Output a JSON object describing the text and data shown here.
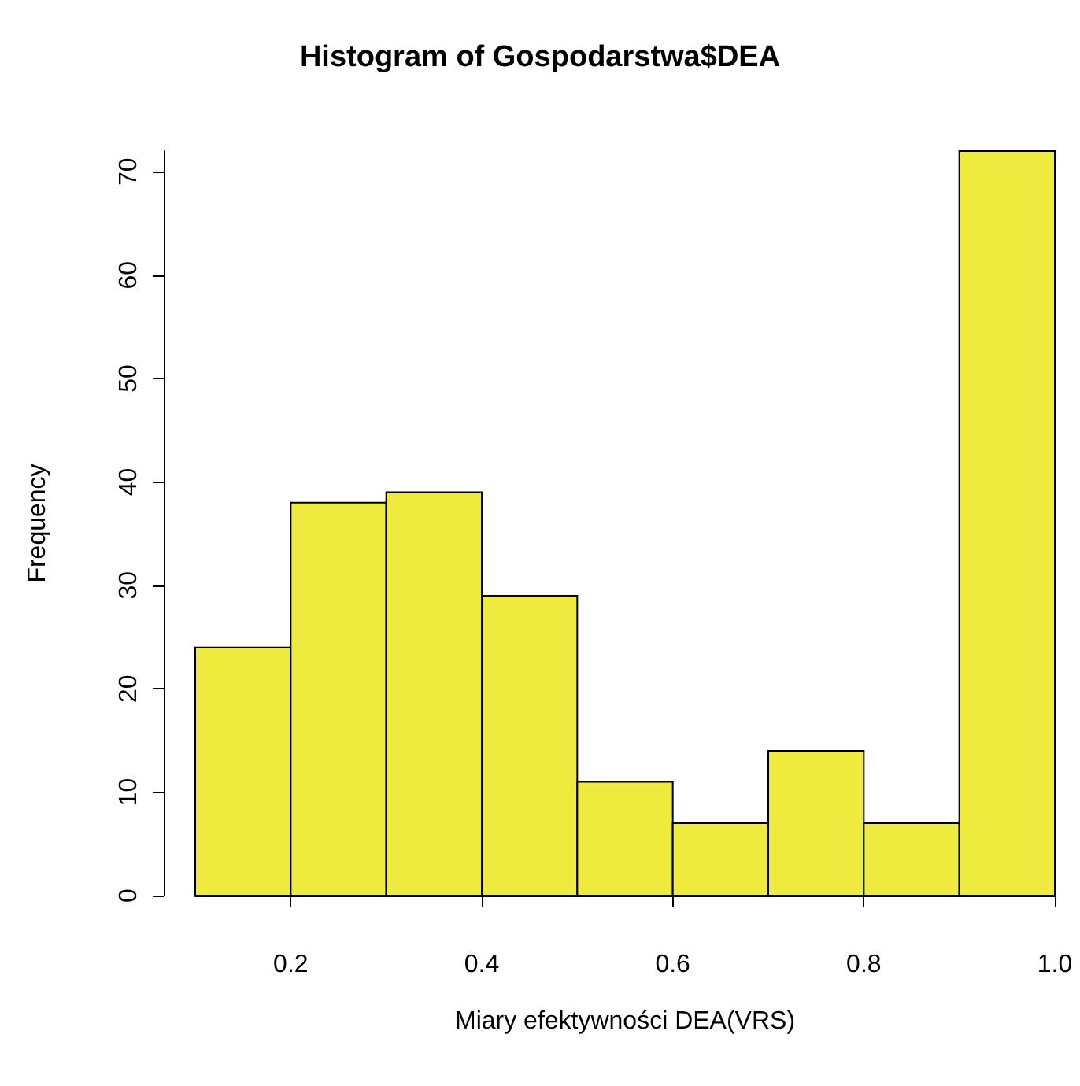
{
  "chart_data": {
    "type": "histogram",
    "title": "Histogram of Gospodarstwa$DEA",
    "xlabel": "Miary efektywności DEA(VRS)",
    "ylabel": "Frequency",
    "bins": [
      0.1,
      0.2,
      0.3,
      0.4,
      0.5,
      0.6,
      0.7,
      0.8,
      0.9,
      1.0
    ],
    "values": [
      24,
      38,
      39,
      29,
      11,
      7,
      14,
      7,
      72
    ],
    "color": "#eeea3e",
    "xlim": [
      0.1,
      1.0
    ],
    "xticks": [
      {
        "value": 0.2,
        "label": "0.2"
      },
      {
        "value": 0.4,
        "label": "0.4"
      },
      {
        "value": 0.6,
        "label": "0.6"
      },
      {
        "value": 0.8,
        "label": "0.8"
      },
      {
        "value": 1.0,
        "label": "1.0"
      }
    ],
    "ylim": [
      0,
      72
    ],
    "yticks": [
      0,
      10,
      20,
      30,
      40,
      50,
      60,
      70
    ],
    "grid": false
  }
}
